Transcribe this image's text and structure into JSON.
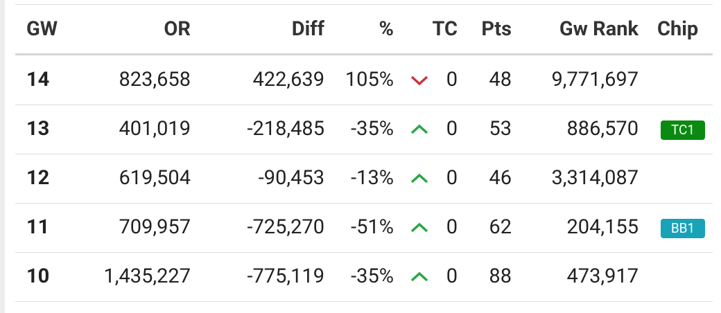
{
  "table": {
    "header": [
      "GW",
      "OR",
      "Diff",
      "%",
      "TC",
      "Pts",
      "Gw Rank",
      "Chip"
    ],
    "rows": [
      {
        "gw": "14",
        "or": "823,658",
        "diff": "422,639",
        "pct": "105%",
        "tc": "0",
        "pts": "48",
        "rank": "9,771,697"
      },
      {
        "gw": "13",
        "or": "401,019",
        "diff": "-218,485",
        "pct": "-35%",
        "tc": "0",
        "pts": "53",
        "rank": "886,570",
        "chip": "TC1"
      },
      {
        "gw": "12",
        "or": "619,504",
        "diff": "-90,453",
        "pct": "-13%",
        "tc": "0",
        "pts": "46",
        "rank": "3,314,087"
      },
      {
        "gw": "11",
        "or": "709,957",
        "diff": "-725,270",
        "pct": "-51%",
        "tc": "0",
        "pts": "62",
        "rank": "204,155",
        "chip": "BB1"
      },
      {
        "gw": "10",
        "or": "1,435,227",
        "diff": "-775,119",
        "pct": "-35%",
        "tc": "0",
        "pts": "88",
        "rank": "473,917"
      }
    ]
  }
}
